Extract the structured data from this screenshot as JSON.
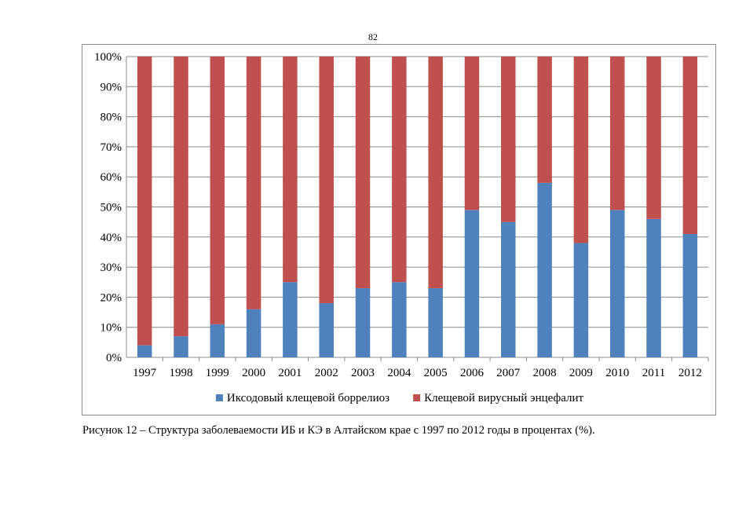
{
  "page_number": "82",
  "caption": "Рисунок 12 – Структура заболеваемости ИБ и КЭ в Алтайском крае с 1997 по 2012 годы в процентах (%).",
  "colors": {
    "borreliosis": "#4F81BD",
    "encephalitis": "#C0504D",
    "grid": "#8c8c8c"
  },
  "chart_data": {
    "type": "bar",
    "stacked": true,
    "percent": true,
    "title": "",
    "xlabel": "",
    "ylabel": "",
    "ylim": [
      0,
      100
    ],
    "y_ticks": [
      "0%",
      "10%",
      "20%",
      "30%",
      "40%",
      "50%",
      "60%",
      "70%",
      "80%",
      "90%",
      "100%"
    ],
    "grid": true,
    "legend_position": "bottom",
    "categories": [
      "1997",
      "1998",
      "1999",
      "2000",
      "2001",
      "2002",
      "2003",
      "2004",
      "2005",
      "2006",
      "2007",
      "2008",
      "2009",
      "2010",
      "2011",
      "2012"
    ],
    "series": [
      {
        "name": "Иксодовый клещевой боррелиоз",
        "color": "#4F81BD",
        "values": [
          4,
          7,
          11,
          16,
          25,
          18,
          23,
          25,
          23,
          49,
          45,
          58,
          38,
          49,
          46,
          41
        ]
      },
      {
        "name": "Клещевой вирусный энцефалит",
        "color": "#C0504D",
        "values": [
          96,
          93,
          89,
          84,
          75,
          82,
          77,
          75,
          77,
          51,
          55,
          42,
          62,
          51,
          54,
          59
        ]
      }
    ]
  }
}
